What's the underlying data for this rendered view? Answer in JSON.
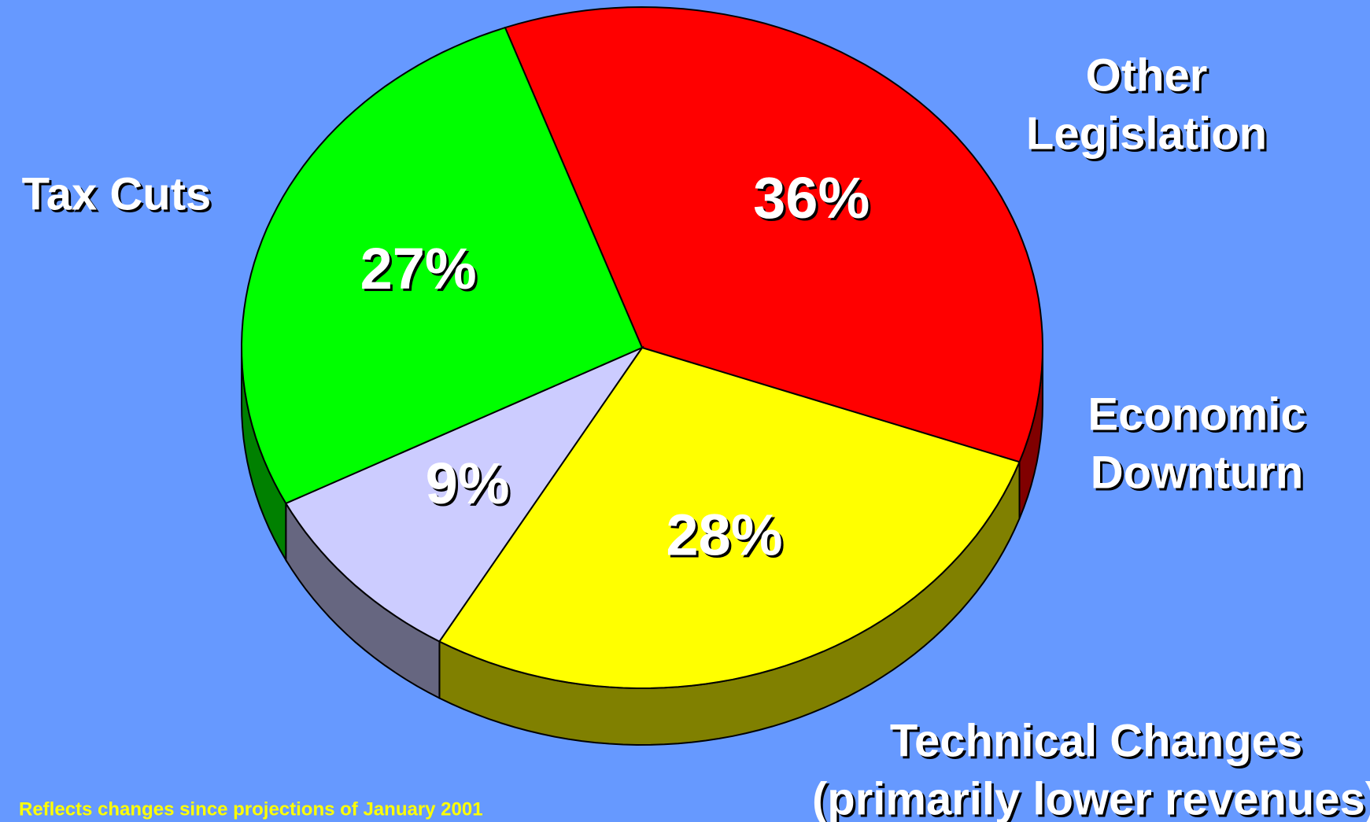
{
  "chart_data": {
    "type": "pie",
    "categories": [
      [
        "Tax Cuts"
      ],
      [
        "Other",
        "Legislation"
      ],
      [
        "Economic",
        "Downturn"
      ],
      [
        "Technical Changes",
        "(primarily lower revenues)"
      ]
    ],
    "values": [
      36,
      28,
      9,
      27
    ],
    "value_labels": [
      "36%",
      "28%",
      "9%",
      "27%"
    ],
    "colors": [
      "#ff0000",
      "#ffff00",
      "#ccccff",
      "#00ff00"
    ],
    "side_colors": [
      "#800000",
      "#808000",
      "#666680",
      "#008000"
    ],
    "footnote": "Reflects changes since projections of January 2001"
  }
}
